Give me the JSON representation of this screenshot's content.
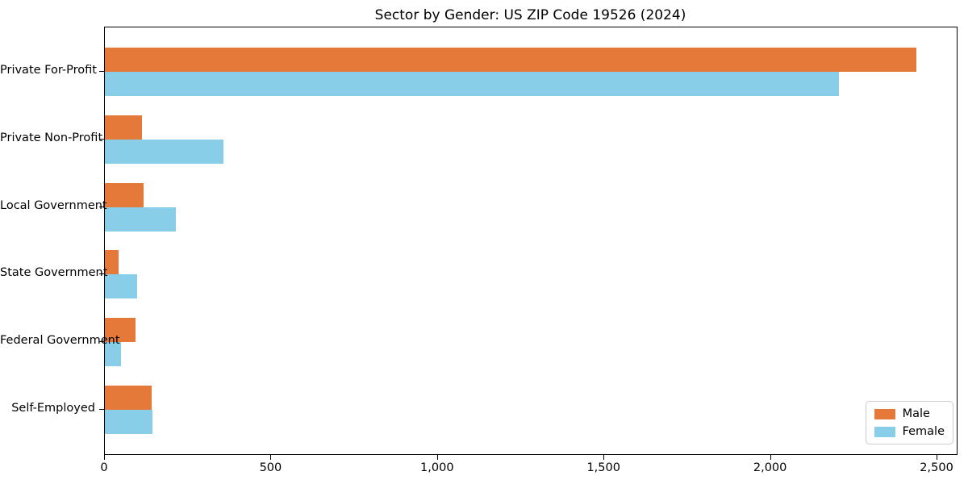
{
  "chart_data": {
    "type": "bar",
    "orientation": "horizontal",
    "title": "Sector by Gender: US ZIP Code 19526 (2024)",
    "categories": [
      "Private For-Profit",
      "Private Non-Profit",
      "Local Government",
      "State Government",
      "Federal Government",
      "Self-Employed"
    ],
    "series": [
      {
        "name": "Male",
        "color": "#e5793a",
        "values": [
          2437,
          111,
          116,
          41,
          91,
          140
        ]
      },
      {
        "name": "Female",
        "color": "#89cee8",
        "values": [
          2205,
          357,
          212,
          96,
          48,
          142
        ]
      }
    ],
    "xlabel": "",
    "ylabel": "",
    "xlim": [
      0,
      2558
    ],
    "xticks": [
      0,
      500,
      1000,
      1500,
      2000,
      2500
    ],
    "xtick_labels": [
      "0",
      "500",
      "1,000",
      "1,500",
      "2,000",
      "2,500"
    ],
    "grid": false,
    "legend_position": "lower right",
    "colors": {
      "male": "#e5793a",
      "female": "#89cee8",
      "axis": "#000000",
      "legend_border": "#cccccc"
    }
  }
}
